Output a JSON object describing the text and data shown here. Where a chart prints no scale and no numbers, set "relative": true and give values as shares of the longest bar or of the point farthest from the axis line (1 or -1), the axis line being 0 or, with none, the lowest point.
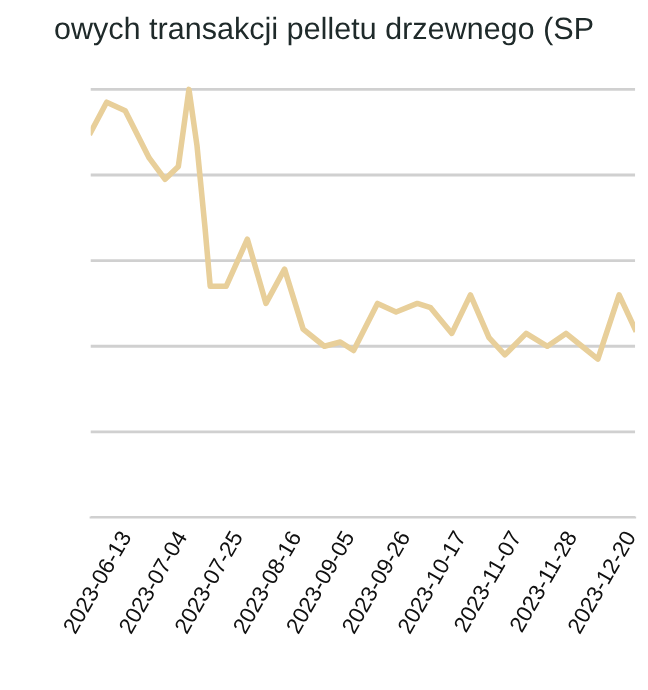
{
  "chart_data": {
    "type": "line",
    "title": "owych transakcji pelletu drzewnego (SP",
    "relative": true,
    "grid": "y",
    "marker": "none",
    "line_style": "solid",
    "xlim": [
      "2023-06-10",
      "2024-01-01"
    ],
    "xticks": [
      "2023-06-13",
      "2023-07-04",
      "2023-07-25",
      "2023-08-16",
      "2023-09-05",
      "2023-09-26",
      "2023-10-17",
      "2023-11-07",
      "2023-11-28",
      "2023-12-20"
    ],
    "series": [
      {
        "color": "#e8cf9a",
        "x": [
          "2023-06-10",
          "2023-06-16",
          "2023-06-23",
          "2023-07-02",
          "2023-07-08",
          "2023-07-13",
          "2023-07-17",
          "2023-07-20",
          "2023-07-23",
          "2023-07-25",
          "2023-07-31",
          "2023-08-08",
          "2023-08-15",
          "2023-08-22",
          "2023-08-29",
          "2023-09-06",
          "2023-09-12",
          "2023-09-17",
          "2023-09-26",
          "2023-10-03",
          "2023-10-11",
          "2023-10-16",
          "2023-10-24",
          "2023-10-31",
          "2023-11-07",
          "2023-11-13",
          "2023-11-21",
          "2023-11-29",
          "2023-12-06",
          "2023-12-12",
          "2023-12-18",
          "2023-12-26",
          "2024-01-01"
        ],
        "values": [
          0.9,
          0.97,
          0.95,
          0.84,
          0.79,
          0.82,
          1.0,
          0.87,
          0.68,
          0.54,
          0.54,
          0.65,
          0.5,
          0.58,
          0.44,
          0.4,
          0.41,
          0.39,
          0.5,
          0.48,
          0.5,
          0.49,
          0.43,
          0.52,
          0.42,
          0.38,
          0.43,
          0.4,
          0.43,
          0.4,
          0.37,
          0.52,
          0.44
        ]
      }
    ]
  }
}
